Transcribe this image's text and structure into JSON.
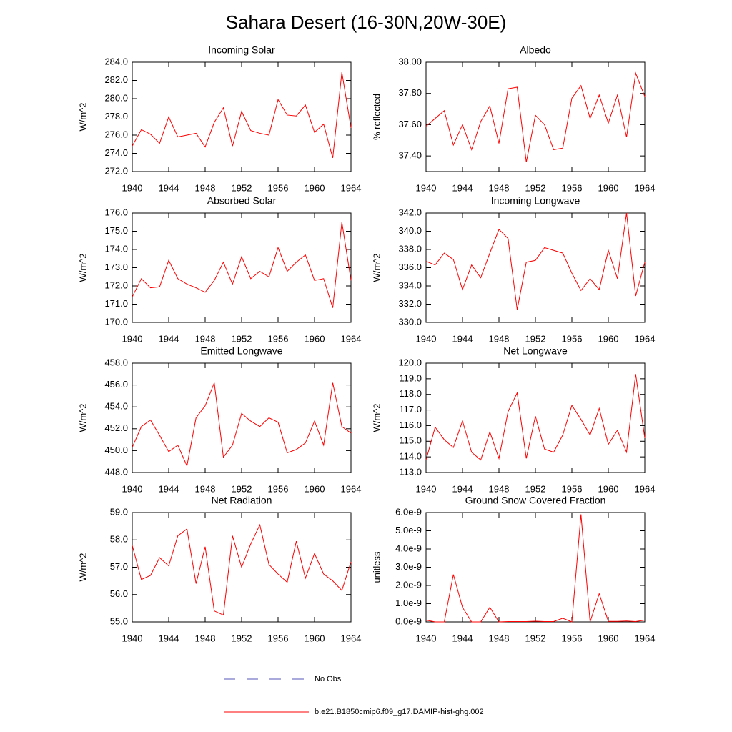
{
  "title": "Sahara Desert (16-30N,20W-30E)",
  "legend": [
    {
      "name": "No Obs",
      "color": "#5555bb",
      "dashed": true
    },
    {
      "name": "b.e21.B1850cmip6.f09_g17.DAMIP-hist-ghg.002",
      "color": "#ff0000",
      "dashed": false
    }
  ],
  "chart_data": [
    {
      "type": "line",
      "title": "Incoming Solar",
      "y_label": "W/m^2",
      "x": [
        1940,
        1941,
        1942,
        1943,
        1944,
        1945,
        1946,
        1947,
        1948,
        1949,
        1950,
        1951,
        1952,
        1953,
        1954,
        1955,
        1956,
        1957,
        1958,
        1959,
        1960,
        1961,
        1962,
        1963,
        1964
      ],
      "values": [
        274.8,
        276.6,
        276.1,
        275.1,
        278.0,
        275.8,
        276.0,
        276.2,
        274.7,
        277.4,
        279.0,
        274.8,
        278.6,
        276.5,
        276.2,
        276.0,
        279.9,
        278.2,
        278.1,
        279.3,
        276.3,
        277.2,
        273.5,
        282.9,
        276.8
      ],
      "color": "#ff0000",
      "xlim": [
        1940,
        1964
      ],
      "xticks": [
        1940,
        1944,
        1948,
        1952,
        1956,
        1960,
        1964
      ],
      "ylim": [
        272,
        284
      ],
      "yticks": [
        {
          "value": 272,
          "label": "272.0"
        },
        {
          "value": 274,
          "label": "274.0"
        },
        {
          "value": 276,
          "label": "276.0"
        },
        {
          "value": 278,
          "label": "278.0"
        },
        {
          "value": 280,
          "label": "280.0"
        },
        {
          "value": 282,
          "label": "282.0"
        },
        {
          "value": 284,
          "label": "284.0"
        }
      ]
    },
    {
      "type": "line",
      "title": "Albedo",
      "y_label": "% reflected",
      "x": [
        1940,
        1941,
        1942,
        1943,
        1944,
        1945,
        1946,
        1947,
        1948,
        1949,
        1950,
        1951,
        1952,
        1953,
        1954,
        1955,
        1956,
        1957,
        1958,
        1959,
        1960,
        1961,
        1962,
        1963,
        1964
      ],
      "values": [
        37.59,
        37.64,
        37.69,
        37.47,
        37.6,
        37.44,
        37.62,
        37.72,
        37.48,
        37.83,
        37.84,
        37.36,
        37.66,
        37.6,
        37.44,
        37.45,
        37.77,
        37.85,
        37.64,
        37.79,
        37.61,
        37.79,
        37.52,
        37.93,
        37.78
      ],
      "color": "#ff0000",
      "xlim": [
        1940,
        1964
      ],
      "xticks": [
        1940,
        1944,
        1948,
        1952,
        1956,
        1960,
        1964
      ],
      "ylim": [
        37.3,
        38.0
      ],
      "yticks": [
        {
          "value": 37.4,
          "label": "37.40"
        },
        {
          "value": 37.6,
          "label": "37.60"
        },
        {
          "value": 37.8,
          "label": "37.80"
        },
        {
          "value": 38.0,
          "label": "38.00"
        }
      ]
    },
    {
      "type": "line",
      "title": "Absorbed Solar",
      "y_label": "W/m^2",
      "x": [
        1940,
        1941,
        1942,
        1943,
        1944,
        1945,
        1946,
        1947,
        1948,
        1949,
        1950,
        1951,
        1952,
        1953,
        1954,
        1955,
        1956,
        1957,
        1958,
        1959,
        1960,
        1961,
        1962,
        1963,
        1964
      ],
      "values": [
        171.4,
        172.4,
        171.9,
        171.95,
        173.4,
        172.4,
        172.1,
        171.9,
        171.65,
        172.3,
        173.3,
        172.1,
        173.6,
        172.4,
        172.8,
        172.5,
        174.1,
        172.8,
        173.3,
        173.7,
        172.3,
        172.4,
        170.8,
        175.5,
        172.3
      ],
      "color": "#ff0000",
      "xlim": [
        1940,
        1964
      ],
      "xticks": [
        1940,
        1944,
        1948,
        1952,
        1956,
        1960,
        1964
      ],
      "ylim": [
        170,
        176
      ],
      "yticks": [
        {
          "value": 170,
          "label": "170.0"
        },
        {
          "value": 171,
          "label": "171.0"
        },
        {
          "value": 172,
          "label": "172.0"
        },
        {
          "value": 173,
          "label": "173.0"
        },
        {
          "value": 174,
          "label": "174.0"
        },
        {
          "value": 175,
          "label": "175.0"
        },
        {
          "value": 176,
          "label": "176.0"
        }
      ]
    },
    {
      "type": "line",
      "title": "Incoming Longwave",
      "y_label": "W/m^2",
      "x": [
        1940,
        1941,
        1942,
        1943,
        1944,
        1945,
        1946,
        1947,
        1948,
        1949,
        1950,
        1951,
        1952,
        1953,
        1954,
        1955,
        1956,
        1957,
        1958,
        1959,
        1960,
        1961,
        1962,
        1963,
        1964
      ],
      "values": [
        336.7,
        336.3,
        337.6,
        336.9,
        333.6,
        336.3,
        334.9,
        337.6,
        340.2,
        339.2,
        331.4,
        336.6,
        336.8,
        338.2,
        337.9,
        337.6,
        335.4,
        333.5,
        334.8,
        333.6,
        337.9,
        334.8,
        342.0,
        332.9,
        336.6
      ],
      "color": "#ff0000",
      "xlim": [
        1940,
        1964
      ],
      "xticks": [
        1940,
        1944,
        1948,
        1952,
        1956,
        1960,
        1964
      ],
      "ylim": [
        330,
        342
      ],
      "yticks": [
        {
          "value": 330,
          "label": "330.0"
        },
        {
          "value": 332,
          "label": "332.0"
        },
        {
          "value": 334,
          "label": "334.0"
        },
        {
          "value": 336,
          "label": "336.0"
        },
        {
          "value": 338,
          "label": "338.0"
        },
        {
          "value": 340,
          "label": "340.0"
        },
        {
          "value": 342,
          "label": "342.0"
        }
      ]
    },
    {
      "type": "line",
      "title": "Emitted Longwave",
      "y_label": "W/m^2",
      "x": [
        1940,
        1941,
        1942,
        1943,
        1944,
        1945,
        1946,
        1947,
        1948,
        1949,
        1950,
        1951,
        1952,
        1953,
        1954,
        1955,
        1956,
        1957,
        1958,
        1959,
        1960,
        1961,
        1962,
        1963,
        1964
      ],
      "values": [
        450.3,
        452.2,
        452.8,
        451.4,
        449.9,
        450.5,
        448.6,
        453.0,
        454.1,
        456.2,
        449.4,
        450.5,
        453.4,
        452.7,
        452.2,
        453.0,
        452.6,
        449.8,
        450.1,
        450.7,
        452.7,
        450.5,
        456.2,
        452.2,
        451.6
      ],
      "color": "#ff0000",
      "xlim": [
        1940,
        1964
      ],
      "xticks": [
        1940,
        1944,
        1948,
        1952,
        1956,
        1960,
        1964
      ],
      "ylim": [
        448,
        458
      ],
      "yticks": [
        {
          "value": 448,
          "label": "448.0"
        },
        {
          "value": 450,
          "label": "450.0"
        },
        {
          "value": 452,
          "label": "452.0"
        },
        {
          "value": 454,
          "label": "454.0"
        },
        {
          "value": 456,
          "label": "456.0"
        },
        {
          "value": 458,
          "label": "458.0"
        }
      ]
    },
    {
      "type": "line",
      "title": "Net Longwave",
      "y_label": "W/m^2",
      "x": [
        1940,
        1941,
        1942,
        1943,
        1944,
        1945,
        1946,
        1947,
        1948,
        1949,
        1950,
        1951,
        1952,
        1953,
        1954,
        1955,
        1956,
        1957,
        1958,
        1959,
        1960,
        1961,
        1962,
        1963,
        1964
      ],
      "values": [
        113.8,
        115.9,
        115.1,
        114.6,
        116.3,
        114.3,
        113.8,
        115.6,
        113.9,
        116.9,
        118.1,
        113.9,
        116.6,
        114.5,
        114.3,
        115.4,
        117.3,
        116.4,
        115.4,
        117.1,
        114.8,
        115.7,
        114.3,
        119.3,
        115.2
      ],
      "color": "#ff0000",
      "xlim": [
        1940,
        1964
      ],
      "xticks": [
        1940,
        1944,
        1948,
        1952,
        1956,
        1960,
        1964
      ],
      "ylim": [
        113,
        120
      ],
      "yticks": [
        {
          "value": 113,
          "label": "113.0"
        },
        {
          "value": 114,
          "label": "114.0"
        },
        {
          "value": 115,
          "label": "115.0"
        },
        {
          "value": 116,
          "label": "116.0"
        },
        {
          "value": 117,
          "label": "117.0"
        },
        {
          "value": 118,
          "label": "118.0"
        },
        {
          "value": 119,
          "label": "119.0"
        },
        {
          "value": 120,
          "label": "120.0"
        }
      ]
    },
    {
      "type": "line",
      "title": "Net Radiation",
      "y_label": "W/m^2",
      "x": [
        1940,
        1941,
        1942,
        1943,
        1944,
        1945,
        1946,
        1947,
        1948,
        1949,
        1950,
        1951,
        1952,
        1953,
        1954,
        1955,
        1956,
        1957,
        1958,
        1959,
        1960,
        1961,
        1962,
        1963,
        1964
      ],
      "values": [
        57.8,
        56.55,
        56.7,
        57.35,
        57.05,
        58.15,
        58.4,
        56.4,
        57.75,
        55.4,
        55.25,
        58.15,
        57.0,
        57.85,
        58.55,
        57.1,
        56.75,
        56.45,
        57.95,
        56.6,
        57.5,
        56.75,
        56.5,
        56.15,
        57.2
      ],
      "color": "#ff0000",
      "xlim": [
        1940,
        1964
      ],
      "xticks": [
        1940,
        1944,
        1948,
        1952,
        1956,
        1960,
        1964
      ],
      "ylim": [
        55,
        59
      ],
      "yticks": [
        {
          "value": 55,
          "label": "55.0"
        },
        {
          "value": 56,
          "label": "56.0"
        },
        {
          "value": 57,
          "label": "57.0"
        },
        {
          "value": 58,
          "label": "58.0"
        },
        {
          "value": 59,
          "label": "59.0"
        }
      ]
    },
    {
      "type": "line",
      "title": "Ground Snow Covered Fraction",
      "y_label": "unitless",
      "x": [
        1940,
        1941,
        1942,
        1943,
        1944,
        1945,
        1946,
        1947,
        1948,
        1949,
        1950,
        1951,
        1952,
        1953,
        1954,
        1955,
        1956,
        1957,
        1958,
        1959,
        1960,
        1961,
        1962,
        1963,
        1964
      ],
      "values": [
        1e-10,
        0,
        0,
        2.6e-09,
        8e-10,
        0,
        0,
        8e-10,
        0,
        2e-11,
        2e-11,
        2e-11,
        4e-11,
        2e-11,
        2e-11,
        2e-10,
        0,
        5.9e-09,
        0,
        1.55e-09,
        3e-11,
        3e-11,
        5e-11,
        2e-11,
        1e-10
      ],
      "color": "#ff0000",
      "xlim": [
        1940,
        1964
      ],
      "xticks": [
        1940,
        1944,
        1948,
        1952,
        1956,
        1960,
        1964
      ],
      "ylim": [
        0,
        6e-09
      ],
      "yticks": [
        {
          "value": 0,
          "label": "0.0e-9"
        },
        {
          "value": 1e-09,
          "label": "1.0e-9"
        },
        {
          "value": 2e-09,
          "label": "2.0e-9"
        },
        {
          "value": 3e-09,
          "label": "3.0e-9"
        },
        {
          "value": 4e-09,
          "label": "4.0e-9"
        },
        {
          "value": 5e-09,
          "label": "5.0e-9"
        },
        {
          "value": 6e-09,
          "label": "6.0e-9"
        }
      ]
    }
  ]
}
